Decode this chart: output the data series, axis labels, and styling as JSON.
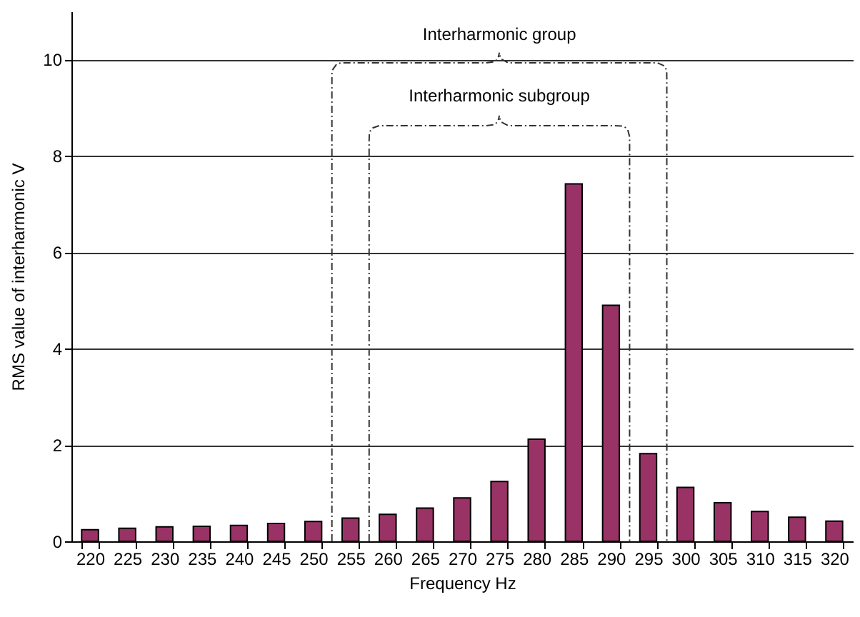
{
  "chart_data": {
    "type": "bar",
    "xlabel": "Frequency    Hz",
    "ylabel": "RMS value of interharmonic    V",
    "categories": [
      "220",
      "225",
      "230",
      "235",
      "240",
      "245",
      "250",
      "255",
      "260",
      "265",
      "270",
      "275",
      "280",
      "285",
      "290",
      "295",
      "300",
      "305",
      "310",
      "315",
      "320"
    ],
    "values": [
      0.24,
      0.27,
      0.3,
      0.31,
      0.33,
      0.37,
      0.41,
      0.48,
      0.56,
      0.69,
      0.9,
      1.24,
      2.12,
      7.42,
      4.9,
      1.82,
      1.12,
      0.8,
      0.62,
      0.5,
      0.42
    ],
    "color": "#993366",
    "ylim": [
      0,
      11
    ],
    "yticks": [
      0,
      2,
      4,
      6,
      8,
      10
    ],
    "grid": "y",
    "annotations": [
      "Interharmonic group",
      "Interharmonic subgroup"
    ]
  }
}
